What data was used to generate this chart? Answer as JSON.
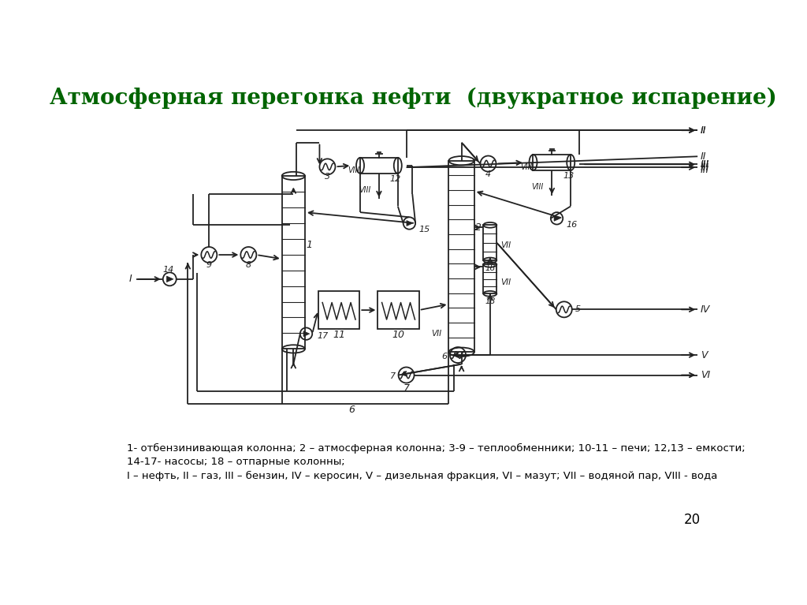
{
  "title": "Атмосферная перегонка нефти  (двукратное испарение)",
  "title_color": "#006400",
  "title_fontsize": 20,
  "legend_line1": "1- отбензинивающая колонна; 2 – атмосферная колонна; 3-9 – теплообменники; 10-11 – печи; 12,13 – емкости;",
  "legend_line2": "14-17- насосы; 18 – отпарные колонны;",
  "legend_line3": "I – нефть, II – газ, III – бензин, IV – керосин, V – дизельная фракция, VI – мазут; VII – водяной пар, VIII - вода",
  "page_number": "20",
  "bg_color": "#ffffff",
  "line_color": "#222222"
}
